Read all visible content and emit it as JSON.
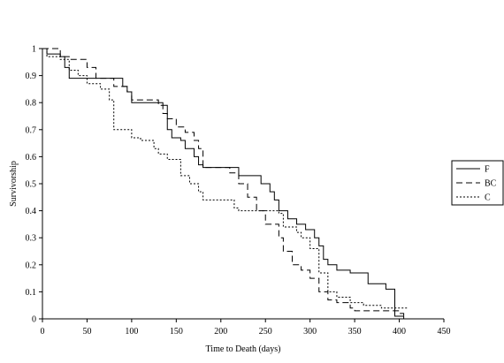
{
  "chart_data": {
    "type": "line",
    "title": "",
    "xlabel": "Time to Death (days)",
    "ylabel": "Survivorship",
    "xlim": [
      0,
      450
    ],
    "ylim": [
      0,
      1
    ],
    "x_ticks": [
      0,
      50,
      100,
      150,
      200,
      250,
      300,
      350,
      400,
      450
    ],
    "x_tick_labels": [
      "0",
      "50",
      "100",
      "150",
      "200",
      "250",
      "300",
      "350",
      "400",
      "450"
    ],
    "y_ticks": [
      0,
      0.1,
      0.2,
      0.3,
      0.4,
      0.5,
      0.6,
      0.7,
      0.8,
      0.9,
      1
    ],
    "y_tick_labels": [
      "0",
      "0.1",
      "0.2",
      "0.3",
      "0.4",
      "0.5",
      "0.6",
      "0.7",
      "0.8",
      "0.9",
      "1"
    ],
    "grid": false,
    "legend_position": "right",
    "step": true,
    "series": [
      {
        "name": "F",
        "dash": "solid",
        "x": [
          0,
          5,
          20,
          25,
          30,
          50,
          85,
          90,
          95,
          100,
          135,
          140,
          145,
          155,
          160,
          170,
          175,
          180,
          185,
          200,
          220,
          240,
          245,
          255,
          260,
          265,
          275,
          285,
          295,
          300,
          305,
          310,
          315,
          320,
          330,
          345,
          350,
          365,
          385,
          390,
          395,
          400,
          405
        ],
        "y": [
          1,
          0.98,
          0.97,
          0.93,
          0.89,
          0.89,
          0.89,
          0.86,
          0.84,
          0.8,
          0.79,
          0.7,
          0.67,
          0.66,
          0.63,
          0.6,
          0.57,
          0.56,
          0.56,
          0.56,
          0.53,
          0.53,
          0.5,
          0.47,
          0.44,
          0.4,
          0.37,
          0.35,
          0.33,
          0.33,
          0.3,
          0.27,
          0.22,
          0.2,
          0.18,
          0.17,
          0.17,
          0.13,
          0.11,
          0.11,
          0.01,
          0.01,
          0
        ]
      },
      {
        "name": "BC",
        "dash": "dashed",
        "x": [
          0,
          5,
          20,
          30,
          50,
          60,
          80,
          95,
          100,
          110,
          130,
          135,
          140,
          150,
          160,
          170,
          175,
          180,
          200,
          210,
          220,
          230,
          240,
          250,
          265,
          270,
          280,
          290,
          300,
          310,
          320,
          330,
          345,
          350,
          360,
          390,
          400,
          405
        ],
        "y": [
          1,
          1,
          0.97,
          0.96,
          0.93,
          0.89,
          0.86,
          0.84,
          0.81,
          0.81,
          0.79,
          0.76,
          0.74,
          0.71,
          0.69,
          0.66,
          0.63,
          0.56,
          0.56,
          0.54,
          0.5,
          0.45,
          0.4,
          0.35,
          0.3,
          0.25,
          0.2,
          0.18,
          0.15,
          0.1,
          0.07,
          0.06,
          0.04,
          0.03,
          0.03,
          0.03,
          0.02,
          0.01
        ]
      },
      {
        "name": "C",
        "dash": "dotted",
        "x": [
          0,
          5,
          20,
          30,
          40,
          50,
          65,
          75,
          80,
          90,
          100,
          110,
          125,
          130,
          140,
          155,
          165,
          175,
          180,
          200,
          215,
          220,
          235,
          255,
          265,
          270,
          285,
          290,
          300,
          310,
          320,
          330,
          345,
          360,
          380,
          395,
          400,
          410
        ],
        "y": [
          1,
          0.97,
          0.96,
          0.92,
          0.9,
          0.87,
          0.85,
          0.81,
          0.7,
          0.7,
          0.67,
          0.66,
          0.63,
          0.61,
          0.59,
          0.53,
          0.5,
          0.47,
          0.44,
          0.44,
          0.41,
          0.4,
          0.4,
          0.4,
          0.39,
          0.34,
          0.32,
          0.3,
          0.26,
          0.17,
          0.1,
          0.08,
          0.06,
          0.05,
          0.04,
          0.04,
          0.04,
          0.04
        ]
      }
    ]
  }
}
